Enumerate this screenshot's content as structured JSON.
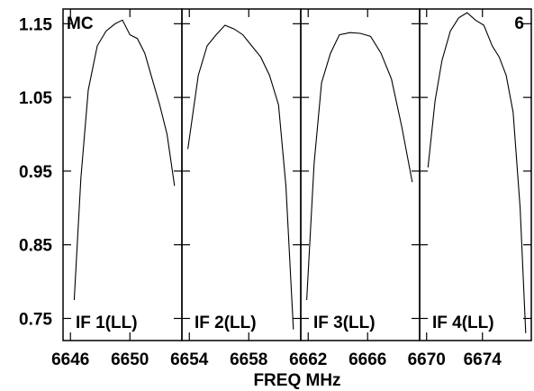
{
  "chart_data": [
    {
      "type": "line",
      "panel_label": "IF 1(LL)",
      "corner_label": "MC",
      "xlim": [
        6645.5,
        6653.5
      ],
      "ylim": [
        0.72,
        1.17
      ],
      "xticks": [
        6646,
        6650
      ],
      "series": [
        {
          "x": [
            6646.25,
            6646.7,
            6647.2,
            6647.8,
            6648.4,
            6649.0,
            6649.5,
            6650.0,
            6650.5,
            6651.0,
            6651.5,
            6652.0,
            6652.5,
            6653.0
          ],
          "y": [
            0.775,
            0.94,
            1.06,
            1.12,
            1.14,
            1.15,
            1.155,
            1.135,
            1.13,
            1.11,
            1.075,
            1.04,
            1.0,
            0.93
          ]
        }
      ]
    },
    {
      "type": "line",
      "panel_label": "IF 2(LL)",
      "corner_label": "",
      "xlim": [
        6653.5,
        6661.5
      ],
      "ylim": [
        0.72,
        1.17
      ],
      "xticks": [
        6654,
        6658
      ],
      "series": [
        {
          "x": [
            6653.9,
            6654.6,
            6655.2,
            6655.8,
            6656.4,
            6657.0,
            6657.6,
            6658.2,
            6658.8,
            6659.4,
            6660.0,
            6660.5,
            6661.0
          ],
          "y": [
            0.98,
            1.08,
            1.12,
            1.135,
            1.148,
            1.143,
            1.135,
            1.12,
            1.105,
            1.08,
            1.04,
            0.93,
            0.735
          ]
        }
      ]
    },
    {
      "type": "line",
      "panel_label": "IF 3(LL)",
      "corner_label": "",
      "xlim": [
        6661.5,
        6669.5
      ],
      "ylim": [
        0.72,
        1.17
      ],
      "xticks": [
        6662,
        6666
      ],
      "series": [
        {
          "x": [
            6661.9,
            6662.4,
            6662.9,
            6663.5,
            6664.1,
            6664.8,
            6665.5,
            6666.2,
            6666.9,
            6667.6,
            6668.3,
            6669.0
          ],
          "y": [
            0.775,
            0.96,
            1.07,
            1.11,
            1.135,
            1.138,
            1.137,
            1.133,
            1.11,
            1.075,
            1.01,
            0.935
          ]
        }
      ]
    },
    {
      "type": "line",
      "panel_label": "IF 4(LL)",
      "corner_label": "6",
      "xlim": [
        6669.5,
        6677.5
      ],
      "ylim": [
        0.72,
        1.17
      ],
      "xticks": [
        6670,
        6674
      ],
      "series": [
        {
          "x": [
            6670.1,
            6670.6,
            6671.1,
            6671.7,
            6672.3,
            6672.9,
            6673.5,
            6674.1,
            6674.7,
            6675.2,
            6675.7,
            6676.2,
            6676.7,
            6677.1
          ],
          "y": [
            0.955,
            1.045,
            1.1,
            1.14,
            1.158,
            1.165,
            1.155,
            1.148,
            1.12,
            1.105,
            1.08,
            1.03,
            0.9,
            0.73
          ]
        }
      ]
    }
  ],
  "yticks": [
    0.75,
    0.85,
    0.95,
    1.05,
    1.15
  ],
  "ytick_labels": [
    "0.75",
    "0.85",
    "0.95",
    "1.05",
    "1.15"
  ],
  "xlabel": "FREQ MHz"
}
